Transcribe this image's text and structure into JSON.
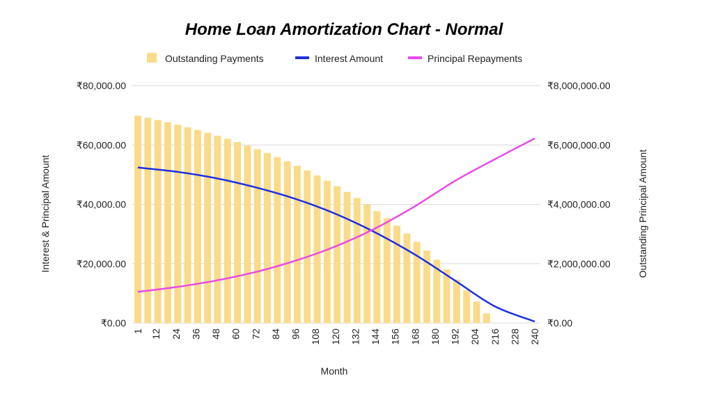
{
  "chart_data": {
    "type": "bar",
    "title": "Home Loan Amortization Chart - Normal",
    "xlabel": "Month",
    "ylabel_left": "Interest & Principal Amount",
    "ylabel_right": "Outstanding Principal Amount",
    "x_tick_labels": [
      "1",
      "12",
      "24",
      "36",
      "48",
      "60",
      "72",
      "84",
      "96",
      "108",
      "120",
      "132",
      "144",
      "156",
      "168",
      "180",
      "192",
      "204",
      "216",
      "228",
      "240"
    ],
    "y_left_ticks": [
      "₹0.00",
      "₹20,000.00",
      "₹40,000.00",
      "₹60,000.00",
      "₹80,000.00"
    ],
    "y_right_ticks": [
      "₹0.00",
      "₹2,000,000.00",
      "₹4,000,000.00",
      "₹6,000,000.00",
      "₹8,000,000.00"
    ],
    "ylim_left": [
      0,
      80000
    ],
    "ylim_right": [
      0,
      8000000
    ],
    "xlim": [
      1,
      240
    ],
    "grid": true,
    "legend_position": "top",
    "colors": {
      "outstanding": "#f9db8a",
      "interest": "#1f2fe0",
      "principal": "#e84ae8"
    },
    "series": [
      {
        "name": "Outstanding Payments",
        "type": "bar",
        "axis": "right",
        "x": [
          1,
          7,
          13,
          19,
          25,
          31,
          37,
          43,
          49,
          55,
          61,
          67,
          73,
          79,
          85,
          91,
          97,
          103,
          109,
          115,
          121,
          127,
          133,
          139,
          145,
          151,
          157,
          163,
          169,
          175,
          181,
          187,
          193,
          199,
          205,
          211,
          217,
          223,
          229,
          235
        ],
        "values": [
          6985000,
          6915000,
          6842000,
          6765000,
          6684000,
          6598000,
          6508000,
          6413000,
          6313000,
          6208000,
          6097000,
          5981000,
          5858000,
          5729000,
          5593000,
          5450000,
          5299000,
          5140000,
          4973000,
          4797000,
          4612000,
          4417000,
          4212000,
          3996000,
          3769000,
          3530000,
          3278000,
          3013000,
          2734000,
          2440000,
          2131000,
          1806000,
          1463000,
          1103000,
          724000,
          324000,
          0,
          0,
          0,
          0
        ]
      },
      {
        "name": "Interest Amount",
        "type": "line",
        "axis": "left",
        "x": [
          1,
          24,
          48,
          72,
          96,
          120,
          144,
          168,
          192,
          216,
          240
        ],
        "values": [
          52400,
          51000,
          48800,
          45700,
          41800,
          36800,
          30500,
          23000,
          14300,
          5600,
          500
        ]
      },
      {
        "name": "Principal Repayments",
        "type": "line",
        "axis": "left",
        "x": [
          1,
          24,
          48,
          72,
          96,
          120,
          144,
          168,
          192,
          216,
          240
        ],
        "values": [
          10500,
          12100,
          14300,
          17200,
          21000,
          25800,
          31900,
          39400,
          47900,
          55200,
          62200
        ]
      }
    ]
  }
}
